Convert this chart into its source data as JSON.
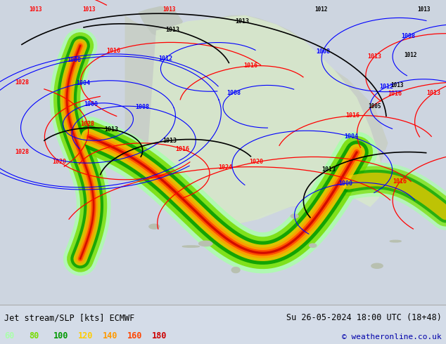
{
  "title_left": "Jet stream/SLP [kts] ECMWF",
  "title_right": "Su 26-05-2024 18:00 UTC (18+48)",
  "copyright": "© weatheronline.co.uk",
  "legend_values": [
    "60",
    "80",
    "100",
    "120",
    "140",
    "160",
    "180"
  ],
  "legend_colors": [
    "#aaffaa",
    "#77dd00",
    "#009900",
    "#ffcc00",
    "#ff9900",
    "#ff4400",
    "#cc0000"
  ],
  "bg_color": "#d4dce8",
  "bottom_bar_color": "#dce4f0",
  "fig_width": 6.34,
  "fig_height": 4.9,
  "dpi": 100,
  "title_fontsize": 8.5,
  "legend_fontsize": 8.5,
  "copyright_fontsize": 8
}
